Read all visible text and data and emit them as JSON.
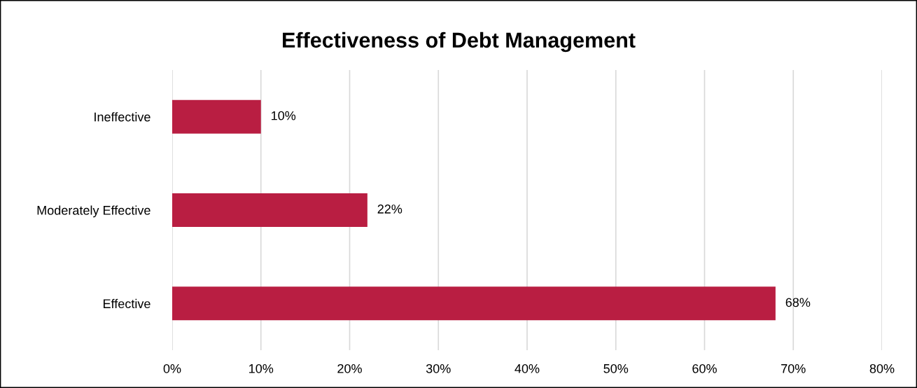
{
  "chart_data": {
    "type": "bar",
    "orientation": "horizontal",
    "title": "Effectiveness of Debt Management",
    "categories": [
      "Ineffective",
      "Moderately Effective",
      "Effective"
    ],
    "values": [
      10,
      22,
      68
    ],
    "color": "#b91e42",
    "value_labels": [
      "10%",
      "22%",
      "68%"
    ],
    "xlim": [
      0,
      80
    ],
    "xticks": [
      {
        "value": 0,
        "label": "0%"
      },
      {
        "value": 10,
        "label": "10%"
      },
      {
        "value": 20,
        "label": "20%"
      },
      {
        "value": 30,
        "label": "30%"
      },
      {
        "value": 40,
        "label": "40%"
      },
      {
        "value": 50,
        "label": "50%"
      },
      {
        "value": 60,
        "label": "60%"
      },
      {
        "value": 70,
        "label": "70%"
      },
      {
        "value": 80,
        "label": "80%"
      }
    ],
    "grid": "x",
    "legend": false
  }
}
